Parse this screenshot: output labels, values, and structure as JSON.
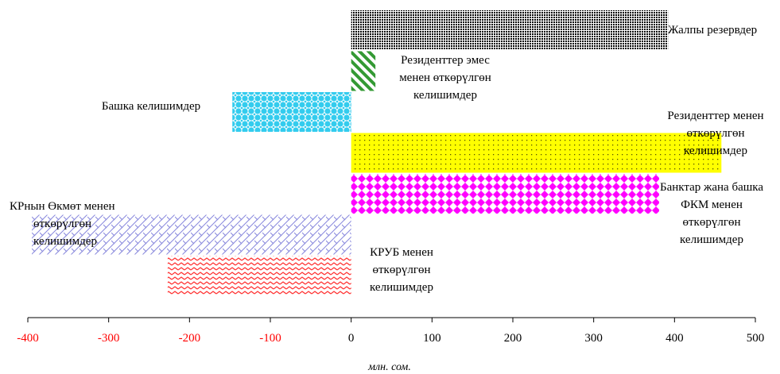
{
  "chart_data": {
    "type": "bar",
    "orientation": "horizontal",
    "xlabel": "млн. сом.",
    "xlim": [
      -400,
      500
    ],
    "grid": false,
    "ticks": [
      {
        "value": -400,
        "label": "-400",
        "color": "#ff0000"
      },
      {
        "value": -300,
        "label": "-300",
        "color": "#ff0000"
      },
      {
        "value": -200,
        "label": "-200",
        "color": "#ff0000"
      },
      {
        "value": -100,
        "label": "-100",
        "color": "#ff0000"
      },
      {
        "value": 0,
        "label": "0",
        "color": "#000000"
      },
      {
        "value": 100,
        "label": "100",
        "color": "#000000"
      },
      {
        "value": 200,
        "label": "200",
        "color": "#000000"
      },
      {
        "value": 300,
        "label": "300",
        "color": "#000000"
      },
      {
        "value": 400,
        "label": "400",
        "color": "#000000"
      },
      {
        "value": 500,
        "label": "500",
        "color": "#000000"
      }
    ],
    "bars": [
      {
        "label": [
          "Жалпы резервдер"
        ],
        "value": 392,
        "color": "#000000",
        "pattern": "dense-dots"
      },
      {
        "label": [
          "Резиденттер эмес",
          "менен өткөрүлгөн",
          "келишимдер"
        ],
        "value": 30,
        "color": "#339933",
        "pattern": "diagonal-stripes"
      },
      {
        "label": [
          "Башка келишимдер"
        ],
        "value": -147,
        "color": "#33ccee",
        "pattern": "circles"
      },
      {
        "label": [
          "Резиденттер менен",
          "өткөрүлгөн",
          "келишимдер"
        ],
        "value": 458,
        "color": "#ffff00",
        "pattern": "sparse-dots"
      },
      {
        "label": [
          "Банктар жана башка",
          "ФКМ менен",
          "өткөрүлгөн",
          "келишимдер"
        ],
        "value": 381,
        "color": "#ff00ff",
        "pattern": "diamonds"
      },
      {
        "label": [
          "КРнын Өкмөт менен",
          "өткөрүлгөн",
          "келишимдер"
        ],
        "value": -395,
        "color": "#aaaaee",
        "pattern": "crosshatch"
      },
      {
        "label": [
          "КРУБ менен",
          "өткөрүлгөн",
          "келишимдер"
        ],
        "value": -227,
        "color": "#ff3333",
        "pattern": "zigzag"
      }
    ]
  }
}
